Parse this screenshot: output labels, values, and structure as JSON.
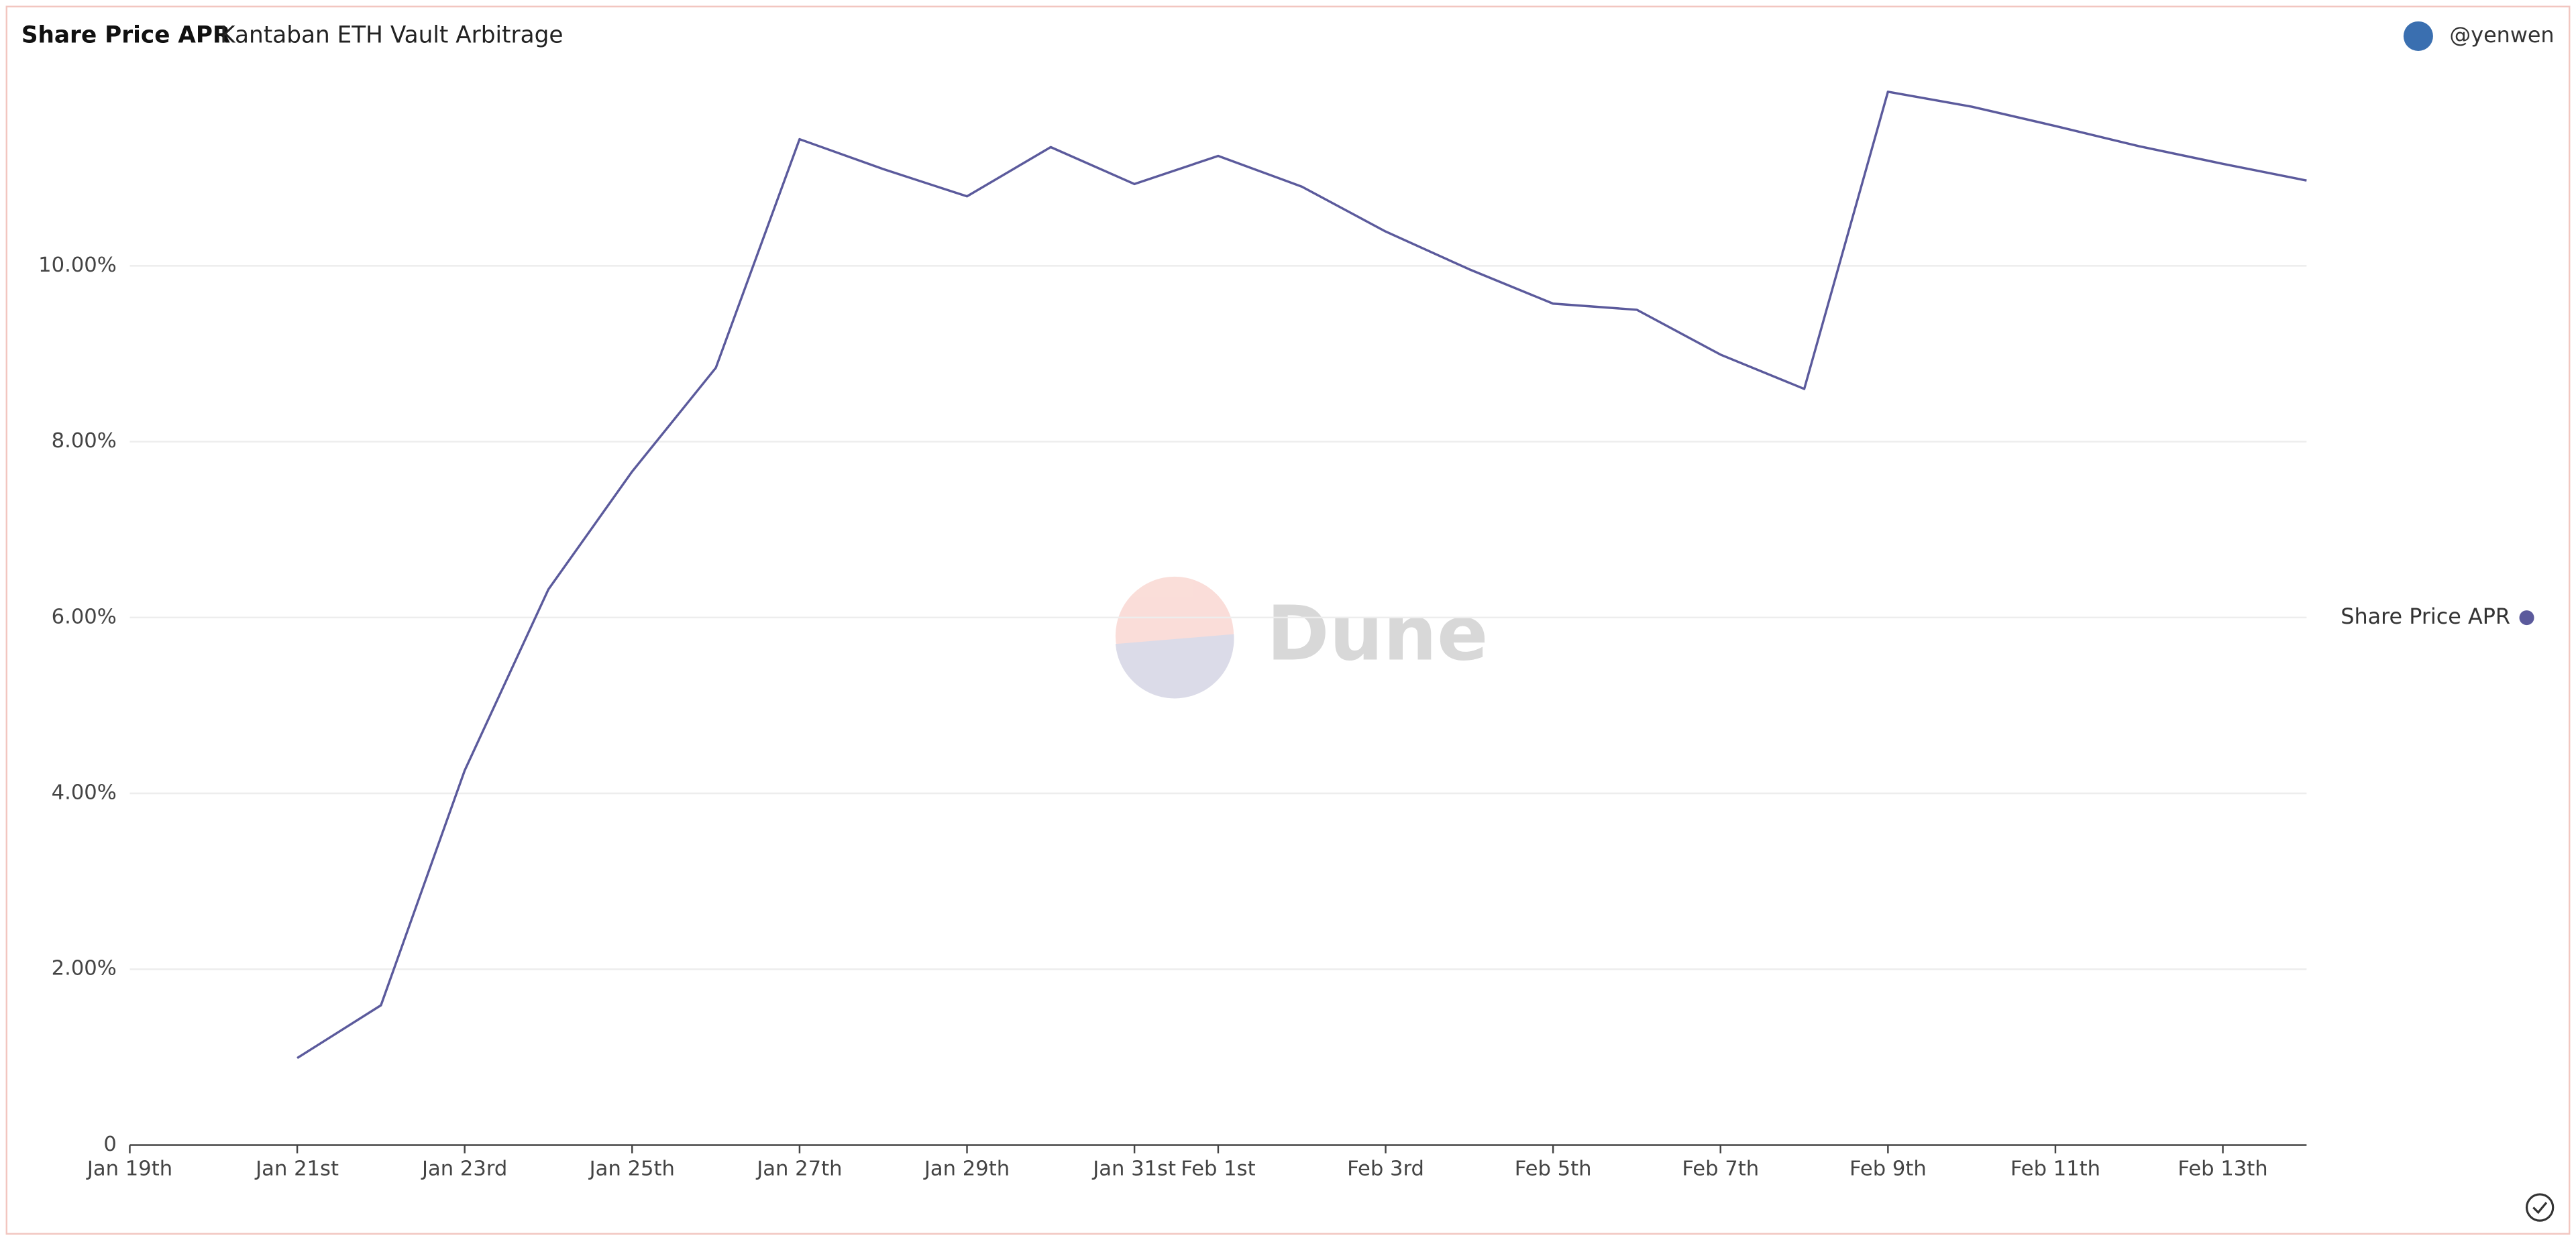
{
  "chart_data": {
    "type": "line",
    "title": "Share Price APR",
    "subtitle": "Kantaban ETH Vault Arbitrage",
    "author": "@yenwen",
    "watermark": "Dune",
    "x": [
      "01-21",
      "01-22",
      "01-23",
      "01-24",
      "01-25",
      "01-26",
      "01-27",
      "01-28",
      "01-29",
      "01-30",
      "01-31",
      "02-01",
      "02-02",
      "02-03",
      "02-04",
      "02-05",
      "02-06",
      "02-07",
      "02-08",
      "02-09",
      "02-10",
      "02-11",
      "02-12",
      "02-13",
      "02-14"
    ],
    "series": [
      {
        "name": "Share Price APR",
        "color": "#5b5a9c",
        "values": [
          0.99,
          1.59,
          4.26,
          6.32,
          7.66,
          8.84,
          11.44,
          11.1,
          10.79,
          11.35,
          10.93,
          11.25,
          10.9,
          10.39,
          9.96,
          9.57,
          9.5,
          8.99,
          8.6,
          11.98,
          11.81,
          11.59,
          11.36,
          11.16,
          10.97
        ]
      }
    ],
    "xlim": [
      "01-19",
      "02-14"
    ],
    "xticks": [
      {
        "value": "01-19",
        "label": "Jan 19th"
      },
      {
        "value": "01-21",
        "label": "Jan 21st"
      },
      {
        "value": "01-23",
        "label": "Jan 23rd"
      },
      {
        "value": "01-25",
        "label": "Jan 25th"
      },
      {
        "value": "01-27",
        "label": "Jan 27th"
      },
      {
        "value": "01-29",
        "label": "Jan 29th"
      },
      {
        "value": "01-31",
        "label": "Jan 31st"
      },
      {
        "value": "02-01",
        "label": "Feb 1st"
      },
      {
        "value": "02-03",
        "label": "Feb 3rd"
      },
      {
        "value": "02-05",
        "label": "Feb 5th"
      },
      {
        "value": "02-07",
        "label": "Feb 7th"
      },
      {
        "value": "02-09",
        "label": "Feb 9th"
      },
      {
        "value": "02-11",
        "label": "Feb 11th"
      },
      {
        "value": "02-13",
        "label": "Feb 13th"
      }
    ],
    "ylim": [
      0,
      12.5
    ],
    "yticks": [
      0,
      {
        "value": 2,
        "label": "2.00%"
      },
      {
        "value": 4,
        "label": "4.00%"
      },
      {
        "value": 6,
        "label": "6.00%"
      },
      {
        "value": 8,
        "label": "8.00%"
      },
      {
        "value": 10,
        "label": "10.00%"
      }
    ],
    "grid": true,
    "legend": "right"
  }
}
